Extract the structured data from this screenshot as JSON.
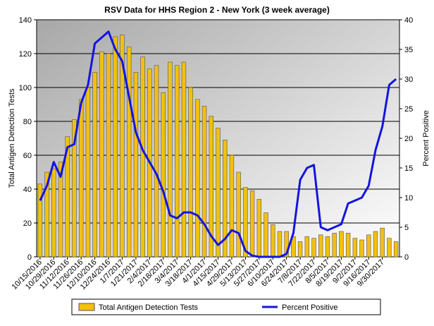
{
  "chart_data": {
    "type": "bar-line",
    "title": "RSV Data for HHS Region 2 - New York (3 week average)",
    "y_label": "Total Antigen Detection Tests",
    "y2_label": "Percent Positive",
    "categories": [
      "10/15/2016",
      null,
      "10/29/2016",
      null,
      "11/12/2016",
      null,
      "11/26/2016",
      null,
      "12/10/2016",
      null,
      "12/24/2016",
      null,
      "1/7/2017",
      null,
      "1/21/2017",
      null,
      "2/4/2017",
      null,
      "2/18/2017",
      null,
      "3/4/2017",
      null,
      "3/18/2017",
      null,
      "4/1/2017",
      null,
      "4/15/2017",
      null,
      "4/29/2017",
      null,
      "5/13/2017",
      null,
      "5/27/2017",
      null,
      "6/10/2017",
      null,
      "6/24/2017",
      null,
      "7/8/2017",
      null,
      "7/22/2017",
      null,
      "8/5/2017",
      null,
      "8/19/2017",
      null,
      "9/2/2017",
      null,
      "9/16/2017",
      null,
      "9/30/2017",
      null,
      null
    ],
    "series": [
      {
        "name": "Total Antigen Detection Tests",
        "type": "bar",
        "color": "#f2c010",
        "values": [
          43,
          50,
          52,
          56,
          71,
          81,
          93,
          100,
          109,
          121,
          120,
          130,
          131,
          124,
          109,
          118,
          111,
          113,
          97,
          115,
          113,
          115,
          100,
          93,
          89,
          83,
          76,
          69,
          60,
          50,
          41,
          39,
          34,
          26,
          19,
          15,
          15,
          12,
          9,
          12,
          11,
          13,
          12,
          14,
          15,
          14,
          11,
          10,
          13,
          15,
          17,
          11,
          9
        ]
      },
      {
        "name": "Percent Positive",
        "type": "line",
        "axis": "y2",
        "color": "#1414e0",
        "values": [
          9.5,
          12,
          16,
          13.5,
          18.5,
          19,
          26,
          29,
          36,
          37,
          38,
          35,
          33,
          27,
          21,
          18,
          16,
          14,
          11,
          7,
          6.5,
          7.5,
          7.5,
          7,
          5.5,
          3.5,
          2,
          3,
          4.5,
          4,
          1,
          0.2,
          0,
          0,
          0,
          0,
          0.5,
          4,
          13,
          15,
          15.5,
          5,
          4.5,
          5,
          5.5,
          9,
          9.5,
          10,
          12,
          18,
          22,
          29,
          30
        ]
      }
    ],
    "ylim": [
      0,
      140
    ],
    "yticks": [
      0,
      20,
      40,
      60,
      80,
      100,
      120,
      140
    ],
    "y2lim": [
      0,
      40
    ],
    "y2ticks": [
      0,
      5,
      10,
      15,
      20,
      25,
      30,
      35,
      40
    ],
    "grid": true
  }
}
